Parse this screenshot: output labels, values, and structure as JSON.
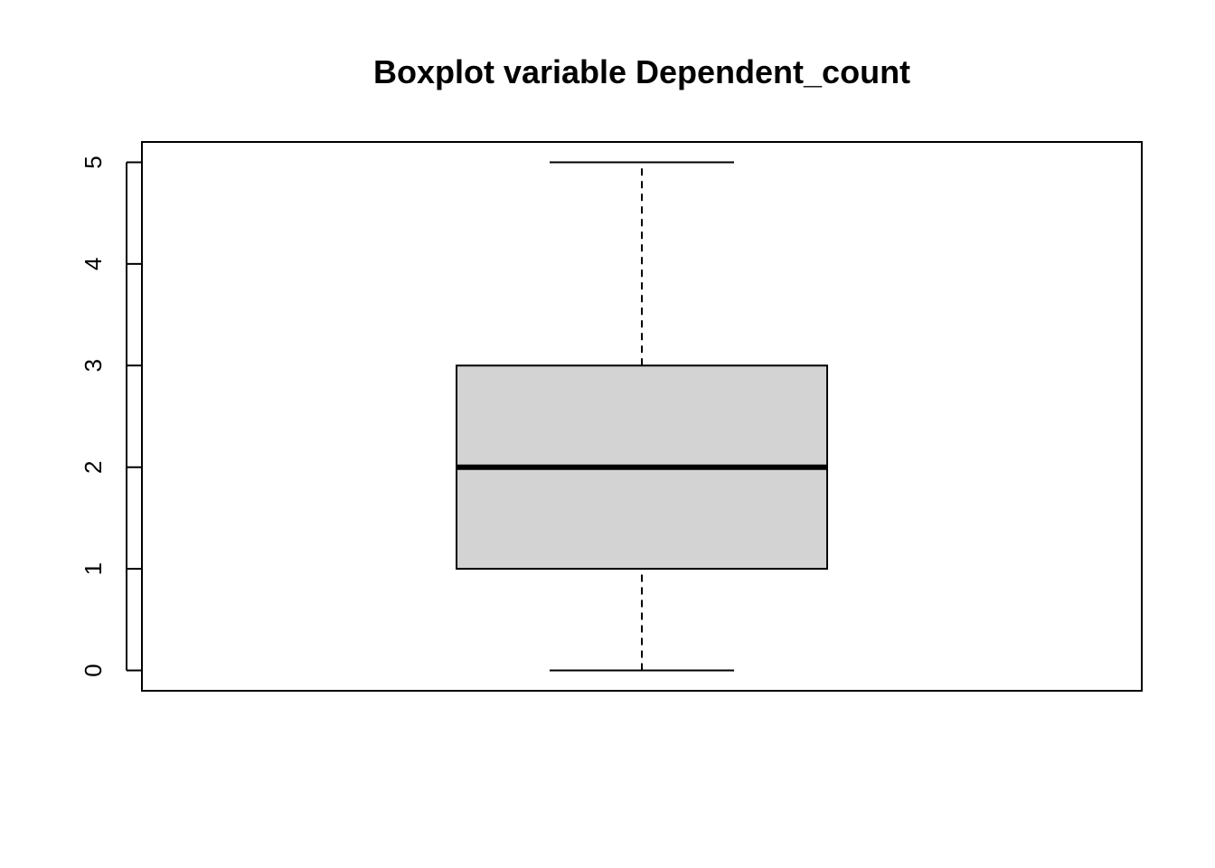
{
  "chart_data": {
    "type": "boxplot",
    "title": "Boxplot variable Dependent_count",
    "xlabel": "",
    "ylabel": "",
    "ylim": [
      -0.2,
      5.2
    ],
    "y_ticks": [
      0,
      1,
      2,
      3,
      4,
      5
    ],
    "box": {
      "min": 0,
      "q1": 1,
      "median": 2,
      "q3": 3,
      "max": 5
    },
    "box_fill": "#d3d3d3",
    "grid": false
  }
}
